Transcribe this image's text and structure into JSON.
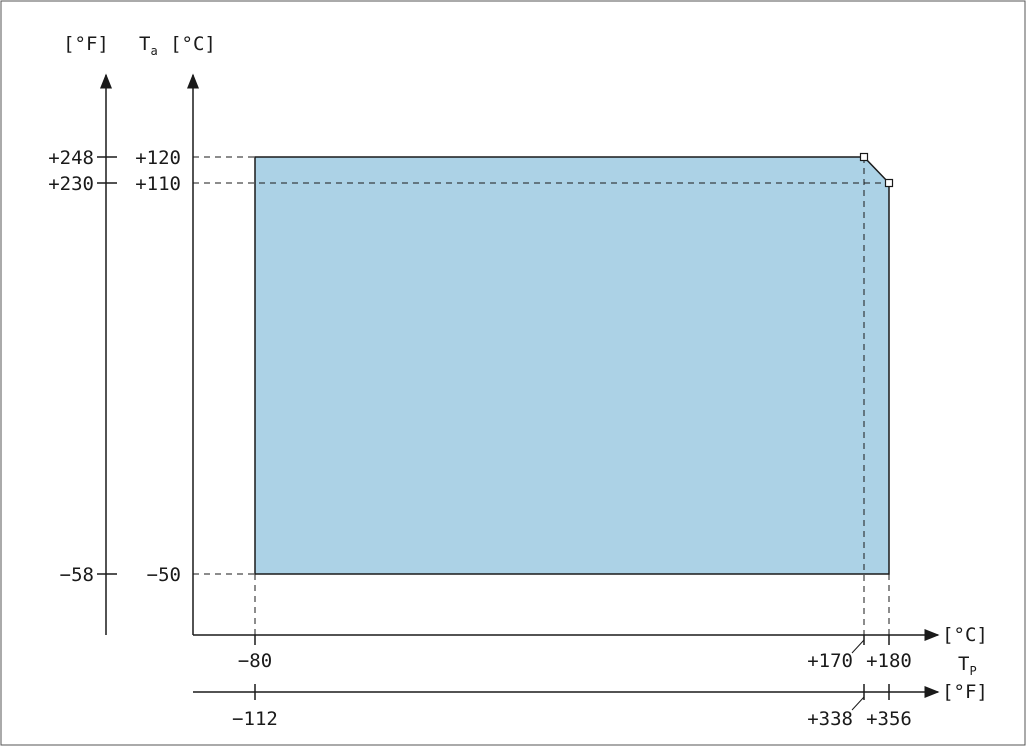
{
  "colors": {
    "fill": "#acd2e6",
    "line": "#1a1a1a",
    "border": "#555555"
  },
  "labels": {
    "unit_f_left": "[°F]",
    "ta_main": "T",
    "ta_sub": "a",
    "unit_c_left": "[°C]",
    "unit_c_right": "[°C]",
    "tp_main": "T",
    "tp_sub": "P",
    "unit_f_right": "[°F]"
  },
  "y_ticks_f": [
    "+248",
    "+230",
    "−58"
  ],
  "y_ticks_c": [
    "+120",
    "+110",
    "−50"
  ],
  "x_ticks_c": [
    "−80",
    "+170",
    "+180"
  ],
  "x_ticks_f": [
    "−112",
    "+338",
    "+356"
  ],
  "chart_data": {
    "type": "area",
    "xlabel": "TP",
    "ylabel": "Ta",
    "x_unit": "°C",
    "y_unit": "°C",
    "region": [
      [
        -80,
        -50
      ],
      [
        -80,
        120
      ],
      [
        170,
        120
      ],
      [
        180,
        110
      ],
      [
        180,
        -50
      ]
    ],
    "corner_markers": [
      [
        170,
        120
      ],
      [
        180,
        110
      ]
    ],
    "x_ticks_c": [
      -80,
      170,
      180
    ],
    "x_ticks_f": [
      -112,
      338,
      356
    ],
    "y_ticks_c": [
      120,
      110,
      -50
    ],
    "y_ticks_f": [
      248,
      230,
      -58
    ]
  }
}
